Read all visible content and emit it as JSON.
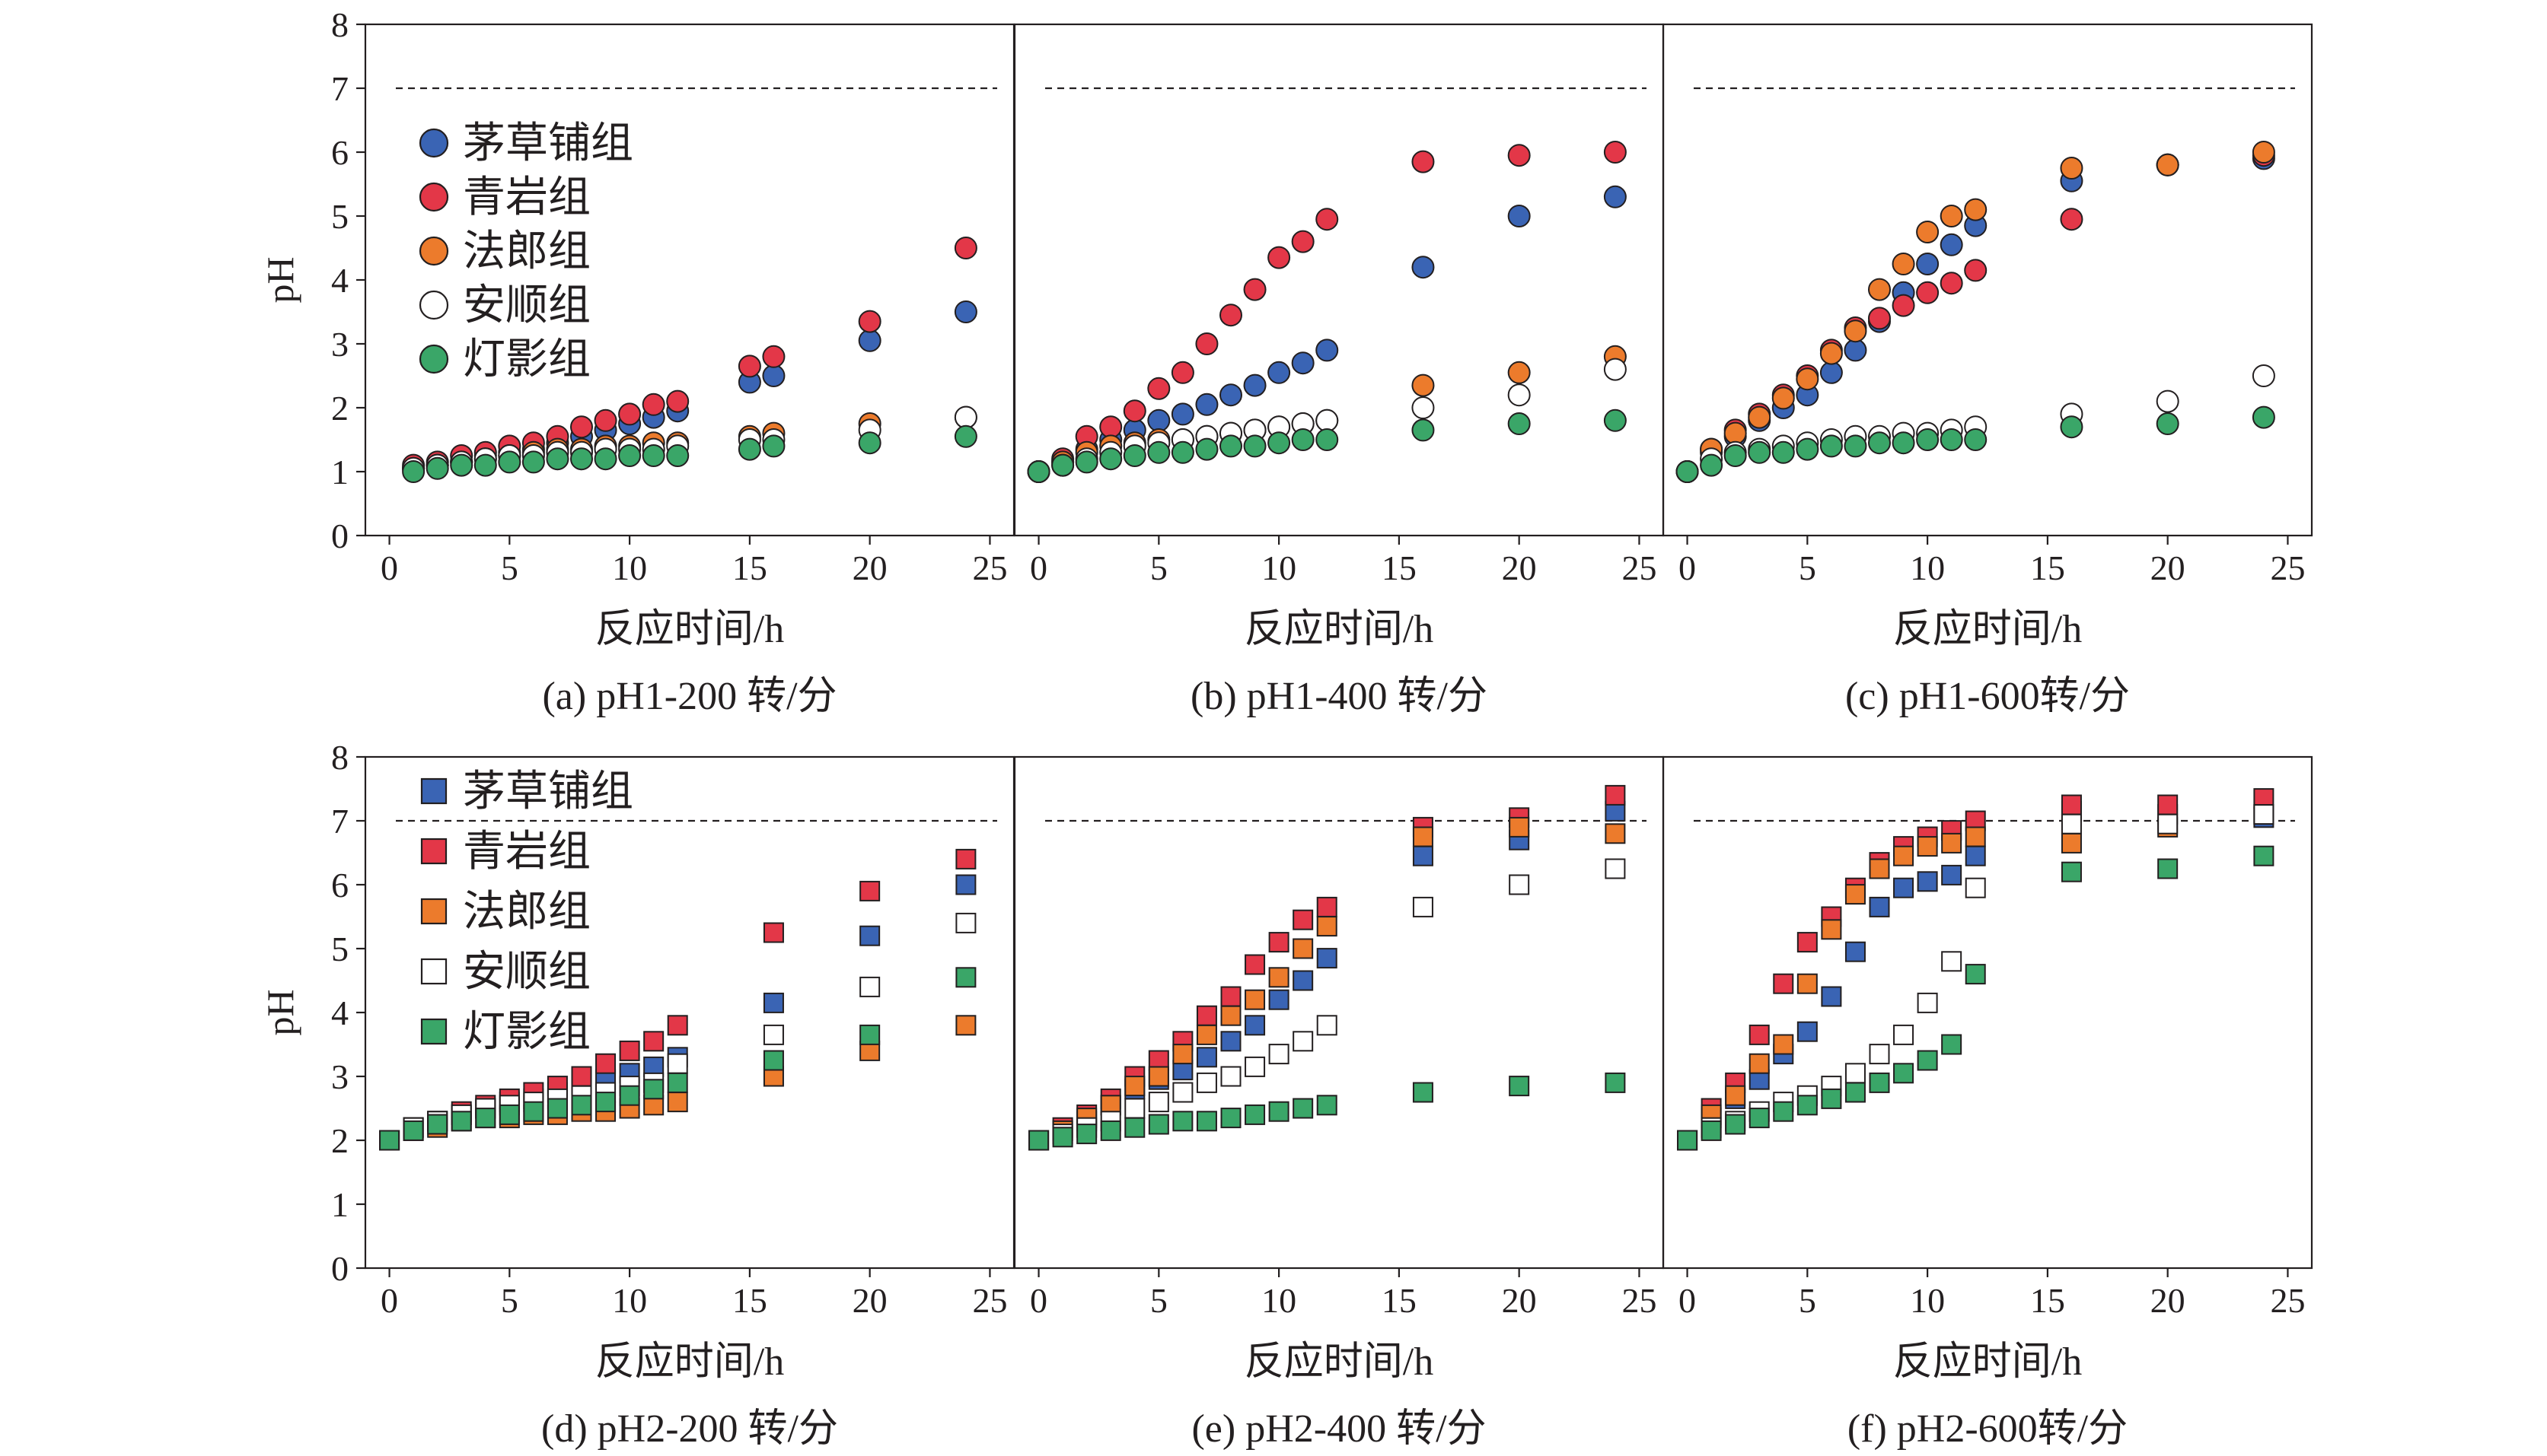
{
  "figure": {
    "ylabel": "pH",
    "xlabel": "反应时间/h",
    "reference_line_value": 7,
    "series_names": [
      "茅草铺组",
      "青岩组",
      "法郎组",
      "安顺组",
      "灯影组"
    ],
    "series_colors": [
      "#3a64b4",
      "#e33748",
      "#ec7b2c",
      "#ffffff",
      "#3aa668"
    ],
    "xlim": [
      -1,
      26
    ],
    "ylim": [
      0,
      8
    ],
    "xticks": [
      0,
      5,
      10,
      15,
      20,
      25
    ],
    "yticks": [
      0,
      1,
      2,
      3,
      4,
      5,
      6,
      7,
      8
    ]
  },
  "chart_data": [
    {
      "type": "scatter",
      "marker": "circle",
      "caption": "(a) pH1-200 转/分",
      "x": [
        1,
        2,
        3,
        4,
        5,
        6,
        7,
        8,
        9,
        10,
        11,
        12,
        15,
        16,
        20,
        24
      ],
      "series": [
        {
          "name": "茅草铺组",
          "values": [
            1.05,
            1.1,
            1.15,
            1.25,
            1.3,
            1.35,
            1.45,
            1.55,
            1.65,
            1.75,
            1.85,
            1.95,
            2.4,
            2.5,
            3.05,
            3.5
          ]
        },
        {
          "name": "青岩组",
          "values": [
            1.1,
            1.15,
            1.25,
            1.3,
            1.4,
            1.45,
            1.55,
            1.7,
            1.8,
            1.9,
            2.05,
            2.1,
            2.65,
            2.8,
            3.35,
            4.5
          ]
        },
        {
          "name": "法郎组",
          "values": [
            1.05,
            1.1,
            1.15,
            1.2,
            1.25,
            1.3,
            1.35,
            1.35,
            1.4,
            1.4,
            1.45,
            1.45,
            1.55,
            1.6,
            1.75,
            1.85
          ]
        },
        {
          "name": "安顺组",
          "values": [
            1.05,
            1.1,
            1.15,
            1.2,
            1.25,
            1.25,
            1.3,
            1.3,
            1.35,
            1.35,
            1.35,
            1.4,
            1.5,
            1.5,
            1.65,
            1.85
          ]
        },
        {
          "name": "灯影组",
          "values": [
            1.0,
            1.05,
            1.1,
            1.1,
            1.15,
            1.15,
            1.2,
            1.2,
            1.2,
            1.25,
            1.25,
            1.25,
            1.35,
            1.4,
            1.45,
            1.55
          ]
        }
      ]
    },
    {
      "type": "scatter",
      "marker": "circle",
      "caption": "(b) pH1-400 转/分",
      "x": [
        0,
        1,
        2,
        3,
        4,
        5,
        6,
        7,
        8,
        9,
        10,
        11,
        12,
        16,
        20,
        24
      ],
      "series": [
        {
          "name": "茅草铺组",
          "values": [
            1.0,
            1.15,
            1.35,
            1.5,
            1.65,
            1.8,
            1.9,
            2.05,
            2.2,
            2.35,
            2.55,
            2.7,
            2.9,
            4.2,
            5.0,
            5.3
          ]
        },
        {
          "name": "青岩组",
          "values": [
            1.0,
            1.2,
            1.55,
            1.7,
            1.95,
            2.3,
            2.55,
            3.0,
            3.45,
            3.85,
            4.35,
            4.6,
            4.95,
            5.85,
            5.95,
            6.0
          ]
        },
        {
          "name": "法郎组",
          "values": [
            1.0,
            1.15,
            1.3,
            1.4,
            1.45,
            1.5,
            1.5,
            1.55,
            1.6,
            1.65,
            1.7,
            1.75,
            1.8,
            2.35,
            2.55,
            2.8
          ]
        },
        {
          "name": "安顺组",
          "values": [
            1.0,
            1.1,
            1.2,
            1.3,
            1.4,
            1.45,
            1.5,
            1.55,
            1.6,
            1.65,
            1.7,
            1.75,
            1.8,
            2.0,
            2.2,
            2.6
          ]
        },
        {
          "name": "灯影组",
          "values": [
            1.0,
            1.1,
            1.15,
            1.2,
            1.25,
            1.3,
            1.3,
            1.35,
            1.4,
            1.4,
            1.45,
            1.5,
            1.5,
            1.65,
            1.75,
            1.8
          ]
        }
      ]
    },
    {
      "type": "scatter",
      "marker": "circle",
      "caption": "(c) pH1-600转/分",
      "x": [
        0,
        1,
        2,
        3,
        4,
        5,
        6,
        7,
        8,
        9,
        10,
        11,
        12,
        16,
        20,
        24
      ],
      "series": [
        {
          "name": "茅草铺组",
          "values": [
            1.0,
            1.3,
            1.55,
            1.8,
            2.0,
            2.2,
            2.55,
            2.9,
            3.35,
            3.8,
            4.25,
            4.55,
            4.85,
            5.55,
            5.8,
            5.9
          ]
        },
        {
          "name": "青岩组",
          "values": [
            1.0,
            1.35,
            1.65,
            1.9,
            2.2,
            2.5,
            2.9,
            3.25,
            3.4,
            3.6,
            3.8,
            3.95,
            4.15,
            4.95,
            5.8,
            5.95
          ]
        },
        {
          "name": "法郎组",
          "values": [
            1.0,
            1.35,
            1.6,
            1.85,
            2.15,
            2.45,
            2.85,
            3.2,
            3.85,
            4.25,
            4.75,
            5.0,
            5.1,
            5.75,
            5.8,
            6.0
          ]
        },
        {
          "name": "安顺组",
          "values": [
            1.0,
            1.2,
            1.3,
            1.35,
            1.4,
            1.45,
            1.5,
            1.55,
            1.55,
            1.6,
            1.6,
            1.65,
            1.7,
            1.9,
            2.1,
            2.5
          ]
        },
        {
          "name": "灯影组",
          "values": [
            1.0,
            1.1,
            1.25,
            1.3,
            1.3,
            1.35,
            1.4,
            1.4,
            1.45,
            1.45,
            1.5,
            1.5,
            1.5,
            1.7,
            1.75,
            1.85
          ]
        }
      ]
    },
    {
      "type": "scatter",
      "marker": "square",
      "caption": "(d) pH2-200 转/分",
      "x": [
        0,
        1,
        2,
        3,
        4,
        5,
        6,
        7,
        8,
        9,
        10,
        11,
        12,
        16,
        20,
        24
      ],
      "series": [
        {
          "name": "茅草铺组",
          "values": [
            2.0,
            2.2,
            2.3,
            2.4,
            2.5,
            2.6,
            2.65,
            2.75,
            2.85,
            2.95,
            3.05,
            3.15,
            3.3,
            4.15,
            5.2,
            6.0
          ]
        },
        {
          "name": "青岩组",
          "values": [
            2.0,
            2.2,
            2.3,
            2.45,
            2.55,
            2.65,
            2.75,
            2.85,
            3.0,
            3.2,
            3.4,
            3.55,
            3.8,
            5.25,
            5.9,
            6.4
          ]
        },
        {
          "name": "法郎组",
          "values": [
            2.0,
            2.15,
            2.2,
            2.3,
            2.35,
            2.35,
            2.4,
            2.4,
            2.45,
            2.45,
            2.5,
            2.55,
            2.6,
            3.0,
            3.4,
            3.8
          ]
        },
        {
          "name": "安顺组",
          "values": [
            2.0,
            2.2,
            2.3,
            2.4,
            2.5,
            2.55,
            2.6,
            2.65,
            2.7,
            2.75,
            2.85,
            2.9,
            3.2,
            3.65,
            4.4,
            5.4
          ]
        },
        {
          "name": "灯影组",
          "values": [
            2.0,
            2.15,
            2.25,
            2.3,
            2.35,
            2.4,
            2.45,
            2.5,
            2.55,
            2.6,
            2.7,
            2.8,
            2.9,
            3.25,
            3.65,
            4.55
          ]
        }
      ]
    },
    {
      "type": "scatter",
      "marker": "square",
      "caption": "(e) pH2-400 转/分",
      "x": [
        0,
        1,
        2,
        3,
        4,
        5,
        6,
        7,
        8,
        9,
        10,
        11,
        12,
        16,
        20,
        24
      ],
      "series": [
        {
          "name": "茅草铺组",
          "values": [
            2.0,
            2.15,
            2.3,
            2.55,
            2.8,
            2.95,
            3.1,
            3.3,
            3.55,
            3.8,
            4.2,
            4.5,
            4.85,
            6.45,
            6.7,
            7.15
          ]
        },
        {
          "name": "青岩组",
          "values": [
            2.0,
            2.2,
            2.4,
            2.65,
            3.0,
            3.25,
            3.55,
            3.95,
            4.25,
            4.75,
            5.1,
            5.45,
            5.65,
            6.9,
            7.05,
            7.4
          ]
        },
        {
          "name": "法郎组",
          "values": [
            2.0,
            2.15,
            2.35,
            2.55,
            2.85,
            3.0,
            3.35,
            3.65,
            3.95,
            4.2,
            4.55,
            5.0,
            5.35,
            6.75,
            6.9,
            6.8
          ]
        },
        {
          "name": "安顺组",
          "values": [
            2.0,
            2.1,
            2.2,
            2.3,
            2.5,
            2.6,
            2.75,
            2.9,
            3.0,
            3.15,
            3.35,
            3.55,
            3.8,
            5.65,
            6.0,
            6.25
          ]
        },
        {
          "name": "灯影组",
          "values": [
            2.0,
            2.05,
            2.1,
            2.15,
            2.2,
            2.25,
            2.3,
            2.3,
            2.35,
            2.4,
            2.45,
            2.5,
            2.55,
            2.75,
            2.85,
            2.9
          ]
        }
      ]
    },
    {
      "type": "scatter",
      "marker": "square",
      "caption": "(f) pH2-600转/分",
      "x": [
        0,
        1,
        2,
        3,
        4,
        5,
        6,
        7,
        8,
        9,
        10,
        11,
        12,
        16,
        20,
        24
      ],
      "series": [
        {
          "name": "茅草铺组",
          "values": [
            2.0,
            2.35,
            2.65,
            2.95,
            3.35,
            3.7,
            4.25,
            4.95,
            5.65,
            5.95,
            6.05,
            6.15,
            6.45,
            7.15,
            7.1,
            7.05
          ]
        },
        {
          "name": "青岩组",
          "values": [
            2.0,
            2.5,
            2.9,
            3.65,
            4.45,
            5.1,
            5.5,
            5.95,
            6.35,
            6.6,
            6.75,
            6.85,
            7.0,
            7.25,
            7.25,
            7.35
          ]
        },
        {
          "name": "法郎组",
          "values": [
            2.0,
            2.4,
            2.7,
            3.2,
            3.5,
            4.45,
            5.3,
            5.85,
            6.25,
            6.45,
            6.6,
            6.65,
            6.75,
            6.65,
            6.9,
            7.1
          ]
        },
        {
          "name": "安顺组",
          "values": [
            2.0,
            2.2,
            2.3,
            2.45,
            2.6,
            2.7,
            2.85,
            3.05,
            3.35,
            3.65,
            4.15,
            4.8,
            5.95,
            6.95,
            6.95,
            7.1
          ]
        },
        {
          "name": "灯影组",
          "values": [
            2.0,
            2.15,
            2.25,
            2.35,
            2.45,
            2.55,
            2.65,
            2.75,
            2.9,
            3.05,
            3.25,
            3.5,
            4.6,
            6.2,
            6.25,
            6.45
          ]
        }
      ]
    }
  ]
}
